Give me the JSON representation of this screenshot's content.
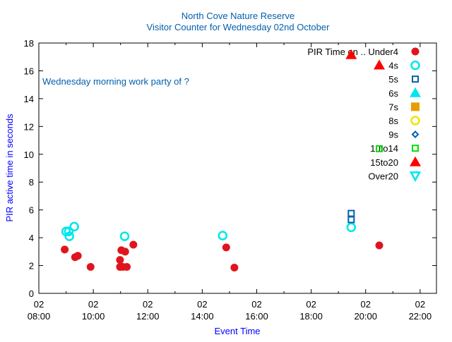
{
  "chart_data": {
    "type": "scatter",
    "title": "North Cove Nature Reserve",
    "subtitle": "Visitor Counter for Wednesday 02nd October",
    "xlabel": "Event Time",
    "ylabel": "PIR active time in seconds",
    "annotation": "Wednesday morning work party of ?",
    "legend_title": "PIR Time on .. Under4",
    "legend_position": "top-right",
    "xlim": [
      8,
      22.6
    ],
    "ylim": [
      0,
      18
    ],
    "yticks": [
      0,
      2,
      4,
      6,
      8,
      10,
      12,
      14,
      16,
      18
    ],
    "xticks": [
      {
        "v": 8,
        "l1": "02",
        "l2": "08:00"
      },
      {
        "v": 10,
        "l1": "02",
        "l2": "10:00"
      },
      {
        "v": 12,
        "l1": "02",
        "l2": "12:00"
      },
      {
        "v": 14,
        "l1": "02",
        "l2": "14:00"
      },
      {
        "v": 16,
        "l1": "02",
        "l2": "16:00"
      },
      {
        "v": 18,
        "l1": "02",
        "l2": "18:00"
      },
      {
        "v": 20,
        "l1": "02",
        "l2": "20:00"
      },
      {
        "v": 22,
        "l1": "02",
        "l2": "22:00"
      }
    ],
    "series": [
      {
        "name": "Under4",
        "legend": "",
        "marker": "filled-circle",
        "color": "#e0141e",
        "points": [
          [
            8.95,
            3.15
          ],
          [
            9.33,
            2.6
          ],
          [
            9.43,
            2.7
          ],
          [
            9.9,
            1.9
          ],
          [
            10.98,
            2.4
          ],
          [
            11.03,
            3.1
          ],
          [
            11.17,
            3.0
          ],
          [
            11.47,
            3.5
          ],
          [
            10.98,
            1.9
          ],
          [
            11.08,
            1.9
          ],
          [
            11.23,
            1.9
          ],
          [
            14.88,
            3.3
          ],
          [
            15.18,
            1.85
          ],
          [
            20.5,
            3.45
          ]
        ]
      },
      {
        "name": "4s",
        "legend": "4s",
        "marker": "open-circle",
        "color": "#00e5ee",
        "points": [
          [
            9.0,
            4.45
          ],
          [
            9.1,
            4.45
          ],
          [
            9.12,
            4.1
          ],
          [
            9.3,
            4.8
          ],
          [
            11.15,
            4.1
          ],
          [
            14.75,
            4.15
          ],
          [
            19.47,
            4.75
          ]
        ]
      },
      {
        "name": "5s",
        "legend": "5s",
        "marker": "open-square",
        "color": "#0060ad",
        "points": [
          [
            19.47,
            5.75
          ],
          [
            19.47,
            5.3
          ]
        ]
      },
      {
        "name": "6s",
        "legend": "6s",
        "marker": "filled-triangle",
        "color": "#00e5ee",
        "points": []
      },
      {
        "name": "7s",
        "legend": "7s",
        "marker": "filled-square",
        "color": "#e69f00",
        "points": []
      },
      {
        "name": "8s",
        "legend": "8s",
        "marker": "open-circle",
        "color": "#f0e400",
        "points": []
      },
      {
        "name": "9s",
        "legend": "9s",
        "marker": "open-diamond",
        "color": "#0060ad",
        "points": []
      },
      {
        "name": "10to14",
        "legend": "10to14",
        "marker": "open-square",
        "color": "#00e000",
        "points": [
          [
            20.5,
            10.4
          ]
        ]
      },
      {
        "name": "15to20",
        "legend": "15to20",
        "marker": "filled-triangle",
        "color": "#ff0000",
        "points": [
          [
            19.47,
            17.15
          ],
          [
            20.5,
            16.4
          ]
        ]
      },
      {
        "name": "Over20",
        "legend": "Over20",
        "marker": "open-down-triangle",
        "color": "#00e5ee",
        "points": []
      }
    ]
  }
}
